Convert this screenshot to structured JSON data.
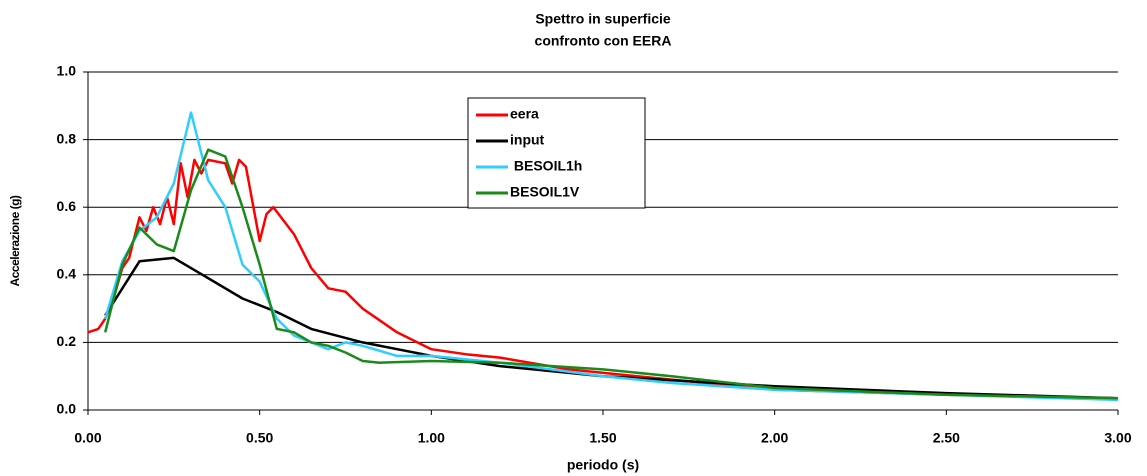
{
  "chart_data": {
    "type": "line",
    "title": [
      "Spettro in superficie",
      "confronto con  EERA"
    ],
    "x_label": "periodo (s)",
    "y_label": "Accelerazione (g)",
    "xlim": [
      0,
      3
    ],
    "ylim": [
      0,
      1
    ],
    "xticks": [
      {
        "value": 0,
        "label": "0.00"
      },
      {
        "value": 0.5,
        "label": "0.50"
      },
      {
        "value": 1,
        "label": "1.00"
      },
      {
        "value": 1.5,
        "label": "1.50"
      },
      {
        "value": 2,
        "label": "2.00"
      },
      {
        "value": 2.5,
        "label": "2.50"
      },
      {
        "value": 3,
        "label": "3.00"
      }
    ],
    "yticks": [
      {
        "value": 0,
        "label": "0.0"
      },
      0.2,
      0.4,
      0.6,
      0.8,
      {
        "value": 1,
        "label": "1.0"
      }
    ],
    "grid": true,
    "series": [
      {
        "name": "eera",
        "color": "#ff0000",
        "x": [
          0,
          0.03,
          0.05,
          0.08,
          0.1,
          0.12,
          0.15,
          0.17,
          0.19,
          0.21,
          0.23,
          0.25,
          0.27,
          0.29,
          0.31,
          0.33,
          0.35,
          0.4,
          0.42,
          0.44,
          0.46,
          0.5,
          0.52,
          0.54,
          0.6,
          0.65,
          0.7,
          0.75,
          0.8,
          0.9,
          1.0,
          1.1,
          1.2,
          1.4,
          1.6,
          1.8,
          2.0,
          2.5,
          3.0
        ],
        "values": [
          0.23,
          0.24,
          0.27,
          0.35,
          0.42,
          0.45,
          0.57,
          0.53,
          0.6,
          0.55,
          0.63,
          0.55,
          0.73,
          0.63,
          0.74,
          0.7,
          0.74,
          0.73,
          0.67,
          0.74,
          0.72,
          0.5,
          0.58,
          0.6,
          0.52,
          0.42,
          0.36,
          0.35,
          0.3,
          0.23,
          0.18,
          0.165,
          0.155,
          0.12,
          0.1,
          0.08,
          0.06,
          0.045,
          0.035
        ]
      },
      {
        "name": "input",
        "color": "#000000",
        "x": [
          0.05,
          0.15,
          0.25,
          0.35,
          0.45,
          0.55,
          0.65,
          0.8,
          1.0,
          1.2,
          1.5,
          2.0,
          2.5,
          3.0
        ],
        "values": [
          0.28,
          0.44,
          0.45,
          0.39,
          0.33,
          0.29,
          0.24,
          0.2,
          0.16,
          0.13,
          0.1,
          0.07,
          0.05,
          0.035
        ]
      },
      {
        "name": " BESOIL1h",
        "color": "#33ccff",
        "x": [
          0.05,
          0.1,
          0.15,
          0.2,
          0.25,
          0.3,
          0.35,
          0.4,
          0.45,
          0.5,
          0.55,
          0.6,
          0.7,
          0.75,
          0.8,
          0.9,
          1.0,
          1.2,
          1.5,
          1.7,
          2.0,
          2.5,
          3.0
        ],
        "values": [
          0.27,
          0.44,
          0.53,
          0.57,
          0.67,
          0.88,
          0.68,
          0.6,
          0.43,
          0.38,
          0.27,
          0.22,
          0.18,
          0.2,
          0.19,
          0.16,
          0.16,
          0.14,
          0.1,
          0.08,
          0.06,
          0.045,
          0.03
        ]
      },
      {
        "name": "BESOIL1V",
        "color": "#1a8a1a",
        "x": [
          0.05,
          0.1,
          0.15,
          0.2,
          0.25,
          0.3,
          0.35,
          0.4,
          0.45,
          0.5,
          0.55,
          0.6,
          0.65,
          0.7,
          0.75,
          0.8,
          0.85,
          1.0,
          1.2,
          1.5,
          1.7,
          2.0,
          2.5,
          3.0
        ],
        "values": [
          0.23,
          0.43,
          0.54,
          0.49,
          0.47,
          0.65,
          0.77,
          0.75,
          0.6,
          0.43,
          0.24,
          0.23,
          0.2,
          0.19,
          0.17,
          0.145,
          0.14,
          0.145,
          0.14,
          0.12,
          0.1,
          0.065,
          0.045,
          0.035
        ]
      }
    ]
  }
}
